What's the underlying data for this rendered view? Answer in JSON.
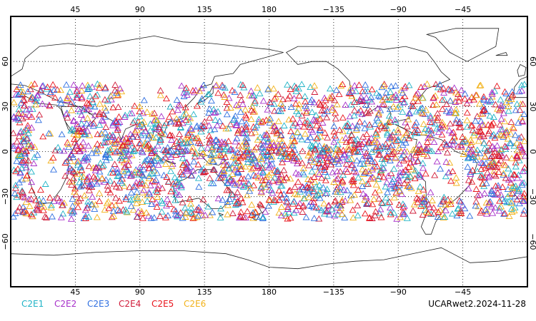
{
  "map": {
    "lon_ticks_top": [
      "45",
      "90",
      "135",
      "180",
      "−135",
      "−90",
      "−45"
    ],
    "lon_ticks_bottom": [
      "45",
      "90",
      "135",
      "180",
      "−135",
      "−90",
      "−45"
    ],
    "lat_ticks_left": [
      "60",
      "30",
      "0",
      "−30",
      "−60"
    ],
    "lat_ticks_right": [
      "60",
      "30",
      "0",
      "−30",
      "−60"
    ],
    "grid": true,
    "projection": "cylindrical equidistant, centered on 180"
  },
  "legend": {
    "items": [
      {
        "label": "C2E1",
        "color": "#1fb3c6"
      },
      {
        "label": "C2E2",
        "color": "#a62fc9"
      },
      {
        "label": "C2E3",
        "color": "#2f6fe0"
      },
      {
        "label": "C2E4",
        "color": "#d01c3a"
      },
      {
        "label": "C2E5",
        "color": "#e8141c"
      },
      {
        "label": "C2E6",
        "color": "#f2b21a"
      }
    ]
  },
  "footer": {
    "label": "UCARwet2.2024-11-28"
  },
  "observations": {
    "marker": "open-triangle",
    "lat_range": [
      -45,
      45
    ],
    "lon_range": [
      0,
      360
    ]
  }
}
